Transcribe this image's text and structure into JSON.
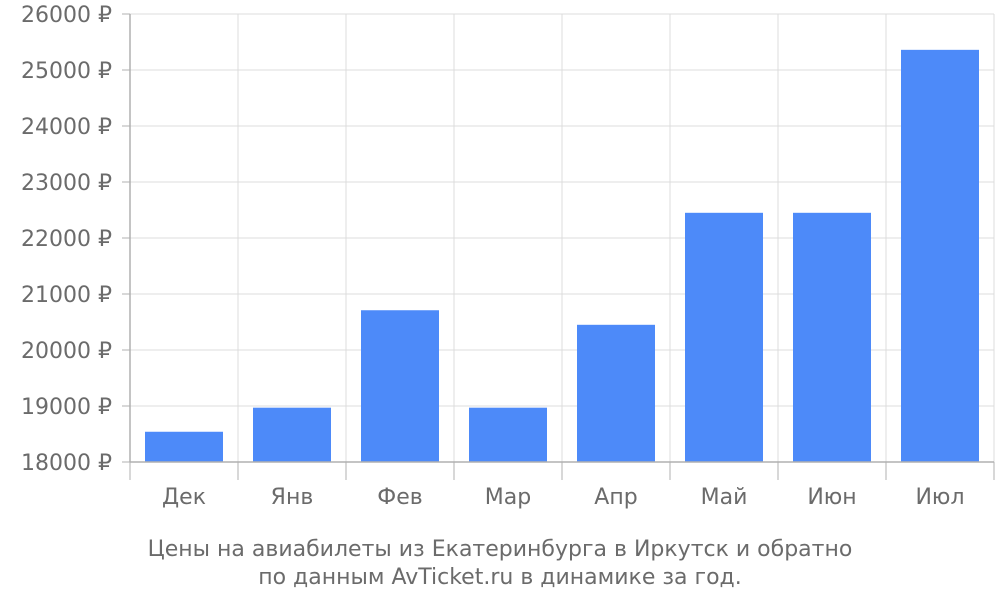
{
  "chart_data": {
    "type": "bar",
    "title": "",
    "xlabel": "",
    "ylabel": "",
    "categories": [
      "Дек",
      "Янв",
      "Фев",
      "Мар",
      "Апр",
      "Май",
      "Июн",
      "Июл"
    ],
    "values": [
      18540,
      18970,
      20710,
      18970,
      20450,
      22450,
      22450,
      25360
    ],
    "ylim": [
      18000,
      26000
    ],
    "yticks": [
      18000,
      19000,
      20000,
      21000,
      22000,
      23000,
      24000,
      25000,
      26000
    ],
    "ytick_suffix": " ₽",
    "grid": true,
    "legend": "none",
    "bar_color": "#4d8af9",
    "grid_color": "#dcdcdc",
    "axis_color": "#b0b0b0",
    "text_color": "#6b6b6b"
  },
  "caption": {
    "line1": "Цены на авиабилеты из Екатеринбурга в Иркутск и обратно",
    "line2": "по данным AvTicket.ru в динамике за год."
  }
}
